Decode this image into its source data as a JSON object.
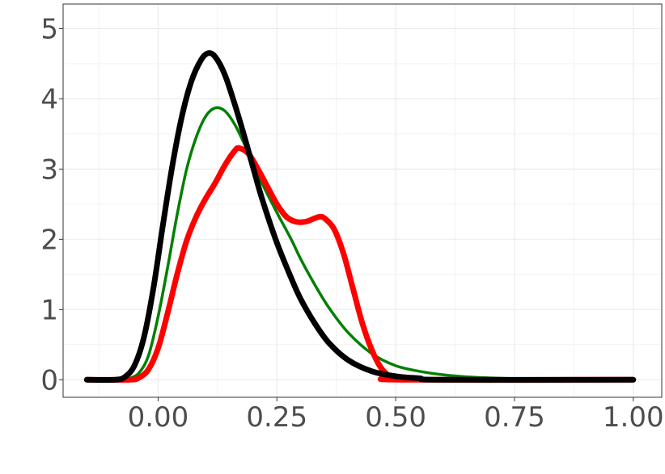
{
  "chart_data": {
    "type": "line",
    "title": "",
    "xlabel": "",
    "ylabel": "",
    "xlim": [
      -0.2,
      1.06
    ],
    "ylim": [
      -0.25,
      5.35
    ],
    "x_ticks": [
      0.0,
      0.25,
      0.5,
      0.75,
      1.0
    ],
    "x_tick_labels": [
      "0.00",
      "0.25",
      "0.50",
      "0.75",
      "1.00"
    ],
    "y_ticks": [
      0,
      1,
      2,
      3,
      4,
      5
    ],
    "y_tick_labels": [
      "0",
      "1",
      "2",
      "3",
      "4",
      "5"
    ],
    "grid": true,
    "legend": "none",
    "series": [
      {
        "color": "#008000",
        "style": "medium",
        "points": [
          [
            -0.15,
            0.0
          ],
          [
            -0.08,
            0.0
          ],
          [
            -0.06,
            0.02
          ],
          [
            -0.04,
            0.1
          ],
          [
            -0.02,
            0.35
          ],
          [
            0.0,
            0.9
          ],
          [
            0.02,
            1.6
          ],
          [
            0.04,
            2.35
          ],
          [
            0.06,
            3.0
          ],
          [
            0.08,
            3.45
          ],
          [
            0.1,
            3.75
          ],
          [
            0.12,
            3.87
          ],
          [
            0.14,
            3.83
          ],
          [
            0.16,
            3.65
          ],
          [
            0.18,
            3.38
          ],
          [
            0.2,
            3.08
          ],
          [
            0.22,
            2.78
          ],
          [
            0.25,
            2.38
          ],
          [
            0.28,
            2.0
          ],
          [
            0.3,
            1.72
          ],
          [
            0.33,
            1.35
          ],
          [
            0.36,
            1.02
          ],
          [
            0.4,
            0.67
          ],
          [
            0.45,
            0.37
          ],
          [
            0.5,
            0.2
          ],
          [
            0.55,
            0.12
          ],
          [
            0.6,
            0.07
          ],
          [
            0.65,
            0.04
          ],
          [
            0.7,
            0.025
          ],
          [
            0.75,
            0.015
          ],
          [
            0.85,
            0.005
          ],
          [
            1.0,
            0.0
          ]
        ]
      },
      {
        "color": "#ff0000",
        "style": "thick",
        "points": [
          [
            -0.15,
            0.0
          ],
          [
            -0.06,
            0.0
          ],
          [
            -0.04,
            0.03
          ],
          [
            -0.02,
            0.15
          ],
          [
            0.0,
            0.45
          ],
          [
            0.02,
            0.95
          ],
          [
            0.04,
            1.5
          ],
          [
            0.06,
            1.98
          ],
          [
            0.08,
            2.32
          ],
          [
            0.1,
            2.58
          ],
          [
            0.12,
            2.8
          ],
          [
            0.14,
            3.05
          ],
          [
            0.16,
            3.25
          ],
          [
            0.17,
            3.3
          ],
          [
            0.19,
            3.22
          ],
          [
            0.21,
            3.0
          ],
          [
            0.23,
            2.75
          ],
          [
            0.25,
            2.5
          ],
          [
            0.27,
            2.32
          ],
          [
            0.29,
            2.25
          ],
          [
            0.31,
            2.25
          ],
          [
            0.33,
            2.3
          ],
          [
            0.34,
            2.32
          ],
          [
            0.35,
            2.3
          ],
          [
            0.37,
            2.15
          ],
          [
            0.39,
            1.8
          ],
          [
            0.41,
            1.3
          ],
          [
            0.43,
            0.8
          ],
          [
            0.45,
            0.42
          ],
          [
            0.47,
            0.16
          ],
          [
            0.49,
            0.04
          ],
          [
            0.51,
            0.0
          ],
          [
            1.0,
            0.0
          ]
        ]
      },
      {
        "color": "#000000",
        "style": "thick",
        "points": [
          [
            -0.15,
            0.0
          ],
          [
            -0.09,
            0.0
          ],
          [
            -0.07,
            0.04
          ],
          [
            -0.05,
            0.2
          ],
          [
            -0.03,
            0.6
          ],
          [
            -0.01,
            1.3
          ],
          [
            0.01,
            2.2
          ],
          [
            0.03,
            3.05
          ],
          [
            0.05,
            3.75
          ],
          [
            0.07,
            4.25
          ],
          [
            0.09,
            4.55
          ],
          [
            0.105,
            4.65
          ],
          [
            0.12,
            4.6
          ],
          [
            0.14,
            4.35
          ],
          [
            0.16,
            3.95
          ],
          [
            0.18,
            3.5
          ],
          [
            0.2,
            3.02
          ],
          [
            0.22,
            2.55
          ],
          [
            0.25,
            1.95
          ],
          [
            0.28,
            1.45
          ],
          [
            0.3,
            1.15
          ],
          [
            0.33,
            0.8
          ],
          [
            0.36,
            0.52
          ],
          [
            0.4,
            0.28
          ],
          [
            0.45,
            0.12
          ],
          [
            0.5,
            0.05
          ],
          [
            0.55,
            0.02
          ],
          [
            0.6,
            0.0
          ],
          [
            1.0,
            0.0
          ]
        ]
      }
    ]
  }
}
